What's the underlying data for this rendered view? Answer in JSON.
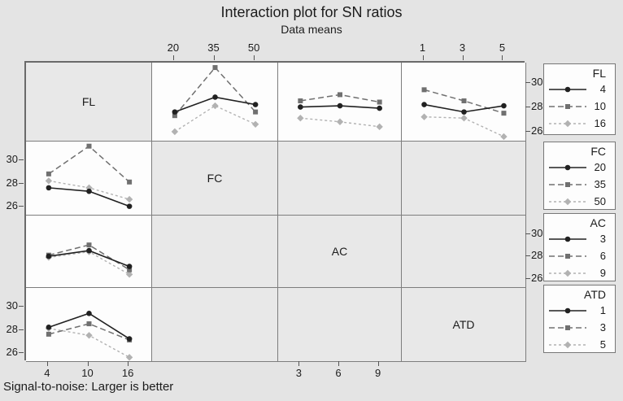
{
  "title": "Interaction plot for SN ratios",
  "subtitle": "Data means",
  "footnote": "Signal-to-noise: Larger is better",
  "colors": {
    "background": "#e4e4e4",
    "panel_fill": "#fdfdfd",
    "diagonal_fill": "#e8e8e8",
    "grid_border": "#6a6a6a",
    "series1": "#212121",
    "series2": "#707070",
    "series3": "#b2b2b2",
    "text": "#1c1c1c"
  },
  "chart_data": {
    "type": "line",
    "description": "4x4 interaction plot matrix of mean SN ratios for factors FL, FC, AC, ATD; upper row and left column panels contain line plots, diagonal panels show factor names, remaining panels are empty.",
    "ylim": [
      25.3,
      31.7
    ],
    "yticks": [
      30,
      28,
      26
    ],
    "factors": [
      {
        "name": "FL",
        "levels": [
          "4",
          "10",
          "16"
        ]
      },
      {
        "name": "FC",
        "levels": [
          "20",
          "35",
          "50"
        ]
      },
      {
        "name": "AC",
        "levels": [
          "3",
          "6",
          "9"
        ]
      },
      {
        "name": "ATD",
        "levels": [
          "1",
          "3",
          "5"
        ]
      }
    ],
    "series_styles": [
      {
        "marker": "circle",
        "line": "solid",
        "color": "#212121"
      },
      {
        "marker": "square",
        "line": "dashed",
        "color": "#707070"
      },
      {
        "marker": "diamond",
        "line": "dotted",
        "color": "#b2b2b2"
      }
    ],
    "panels": [
      {
        "row": 0,
        "col": 1,
        "x_factor": "FC",
        "trace_factor": "FL",
        "x_levels": [
          "20",
          "35",
          "50"
        ],
        "series": [
          {
            "level": "4",
            "values": [
              27.7,
              28.9,
              28.3
            ]
          },
          {
            "level": "10",
            "values": [
              27.4,
              31.3,
              27.7
            ]
          },
          {
            "level": "16",
            "values": [
              26.1,
              28.2,
              26.7
            ]
          }
        ]
      },
      {
        "row": 0,
        "col": 2,
        "x_factor": "AC",
        "trace_factor": "FL",
        "x_levels": [
          "3",
          "6",
          "9"
        ],
        "series": [
          {
            "level": "4",
            "values": [
              28.1,
              28.2,
              28.0
            ]
          },
          {
            "level": "10",
            "values": [
              28.6,
              29.1,
              28.5
            ]
          },
          {
            "level": "16",
            "values": [
              27.2,
              26.9,
              26.5
            ]
          }
        ]
      },
      {
        "row": 0,
        "col": 3,
        "x_factor": "ATD",
        "trace_factor": "FL",
        "x_levels": [
          "1",
          "3",
          "5"
        ],
        "series": [
          {
            "level": "4",
            "values": [
              28.3,
              27.7,
              28.2
            ]
          },
          {
            "level": "10",
            "values": [
              29.5,
              28.6,
              27.6
            ]
          },
          {
            "level": "16",
            "values": [
              27.3,
              27.2,
              25.7
            ]
          }
        ]
      },
      {
        "row": 1,
        "col": 0,
        "x_factor": "FL",
        "trace_factor": "FC",
        "x_levels": [
          "4",
          "10",
          "16"
        ],
        "series": [
          {
            "level": "20",
            "values": [
              27.7,
              27.4,
              26.1
            ]
          },
          {
            "level": "35",
            "values": [
              28.9,
              31.3,
              28.2
            ]
          },
          {
            "level": "50",
            "values": [
              28.3,
              27.7,
              26.7
            ]
          }
        ]
      },
      {
        "row": 2,
        "col": 0,
        "x_factor": "FL",
        "trace_factor": "AC",
        "x_levels": [
          "4",
          "10",
          "16"
        ],
        "series": [
          {
            "level": "3",
            "values": [
              28.1,
              28.6,
              27.2
            ]
          },
          {
            "level": "6",
            "values": [
              28.2,
              29.1,
              26.9
            ]
          },
          {
            "level": "9",
            "values": [
              28.0,
              28.5,
              26.5
            ]
          }
        ]
      },
      {
        "row": 3,
        "col": 0,
        "x_factor": "FL",
        "trace_factor": "ATD",
        "x_levels": [
          "4",
          "10",
          "16"
        ],
        "series": [
          {
            "level": "1",
            "values": [
              28.3,
              29.5,
              27.3
            ]
          },
          {
            "level": "3",
            "values": [
              27.7,
              28.6,
              27.2
            ]
          },
          {
            "level": "5",
            "values": [
              28.2,
              27.6,
              25.7
            ]
          }
        ]
      }
    ],
    "diagonal_cells": [
      {
        "row": 0,
        "col": 0,
        "label": "FL"
      },
      {
        "row": 1,
        "col": 1,
        "label": "FC"
      },
      {
        "row": 2,
        "col": 2,
        "label": "AC"
      },
      {
        "row": 3,
        "col": 3,
        "label": "ATD"
      }
    ],
    "empty_cells": [
      {
        "row": 1,
        "col": 2
      },
      {
        "row": 1,
        "col": 3
      },
      {
        "row": 2,
        "col": 1
      },
      {
        "row": 2,
        "col": 3
      },
      {
        "row": 3,
        "col": 1
      },
      {
        "row": 3,
        "col": 2
      }
    ],
    "axes": {
      "top": [
        {
          "col": 1,
          "labels": [
            "20",
            "35",
            "50"
          ]
        },
        {
          "col": 3,
          "labels": [
            "1",
            "3",
            "5"
          ]
        }
      ],
      "bottom": [
        {
          "col": 0,
          "labels": [
            "4",
            "10",
            "16"
          ]
        },
        {
          "col": 2,
          "labels": [
            "3",
            "6",
            "9"
          ]
        }
      ],
      "left_rows": [
        1,
        3
      ],
      "right_rows": [
        0,
        2
      ]
    },
    "legends": [
      {
        "title": "FL",
        "entries": [
          "4",
          "10",
          "16"
        ]
      },
      {
        "title": "FC",
        "entries": [
          "20",
          "35",
          "50"
        ]
      },
      {
        "title": "AC",
        "entries": [
          "3",
          "6",
          "9"
        ]
      },
      {
        "title": "ATD",
        "entries": [
          "1",
          "3",
          "5"
        ]
      }
    ],
    "legend_position": "right"
  }
}
